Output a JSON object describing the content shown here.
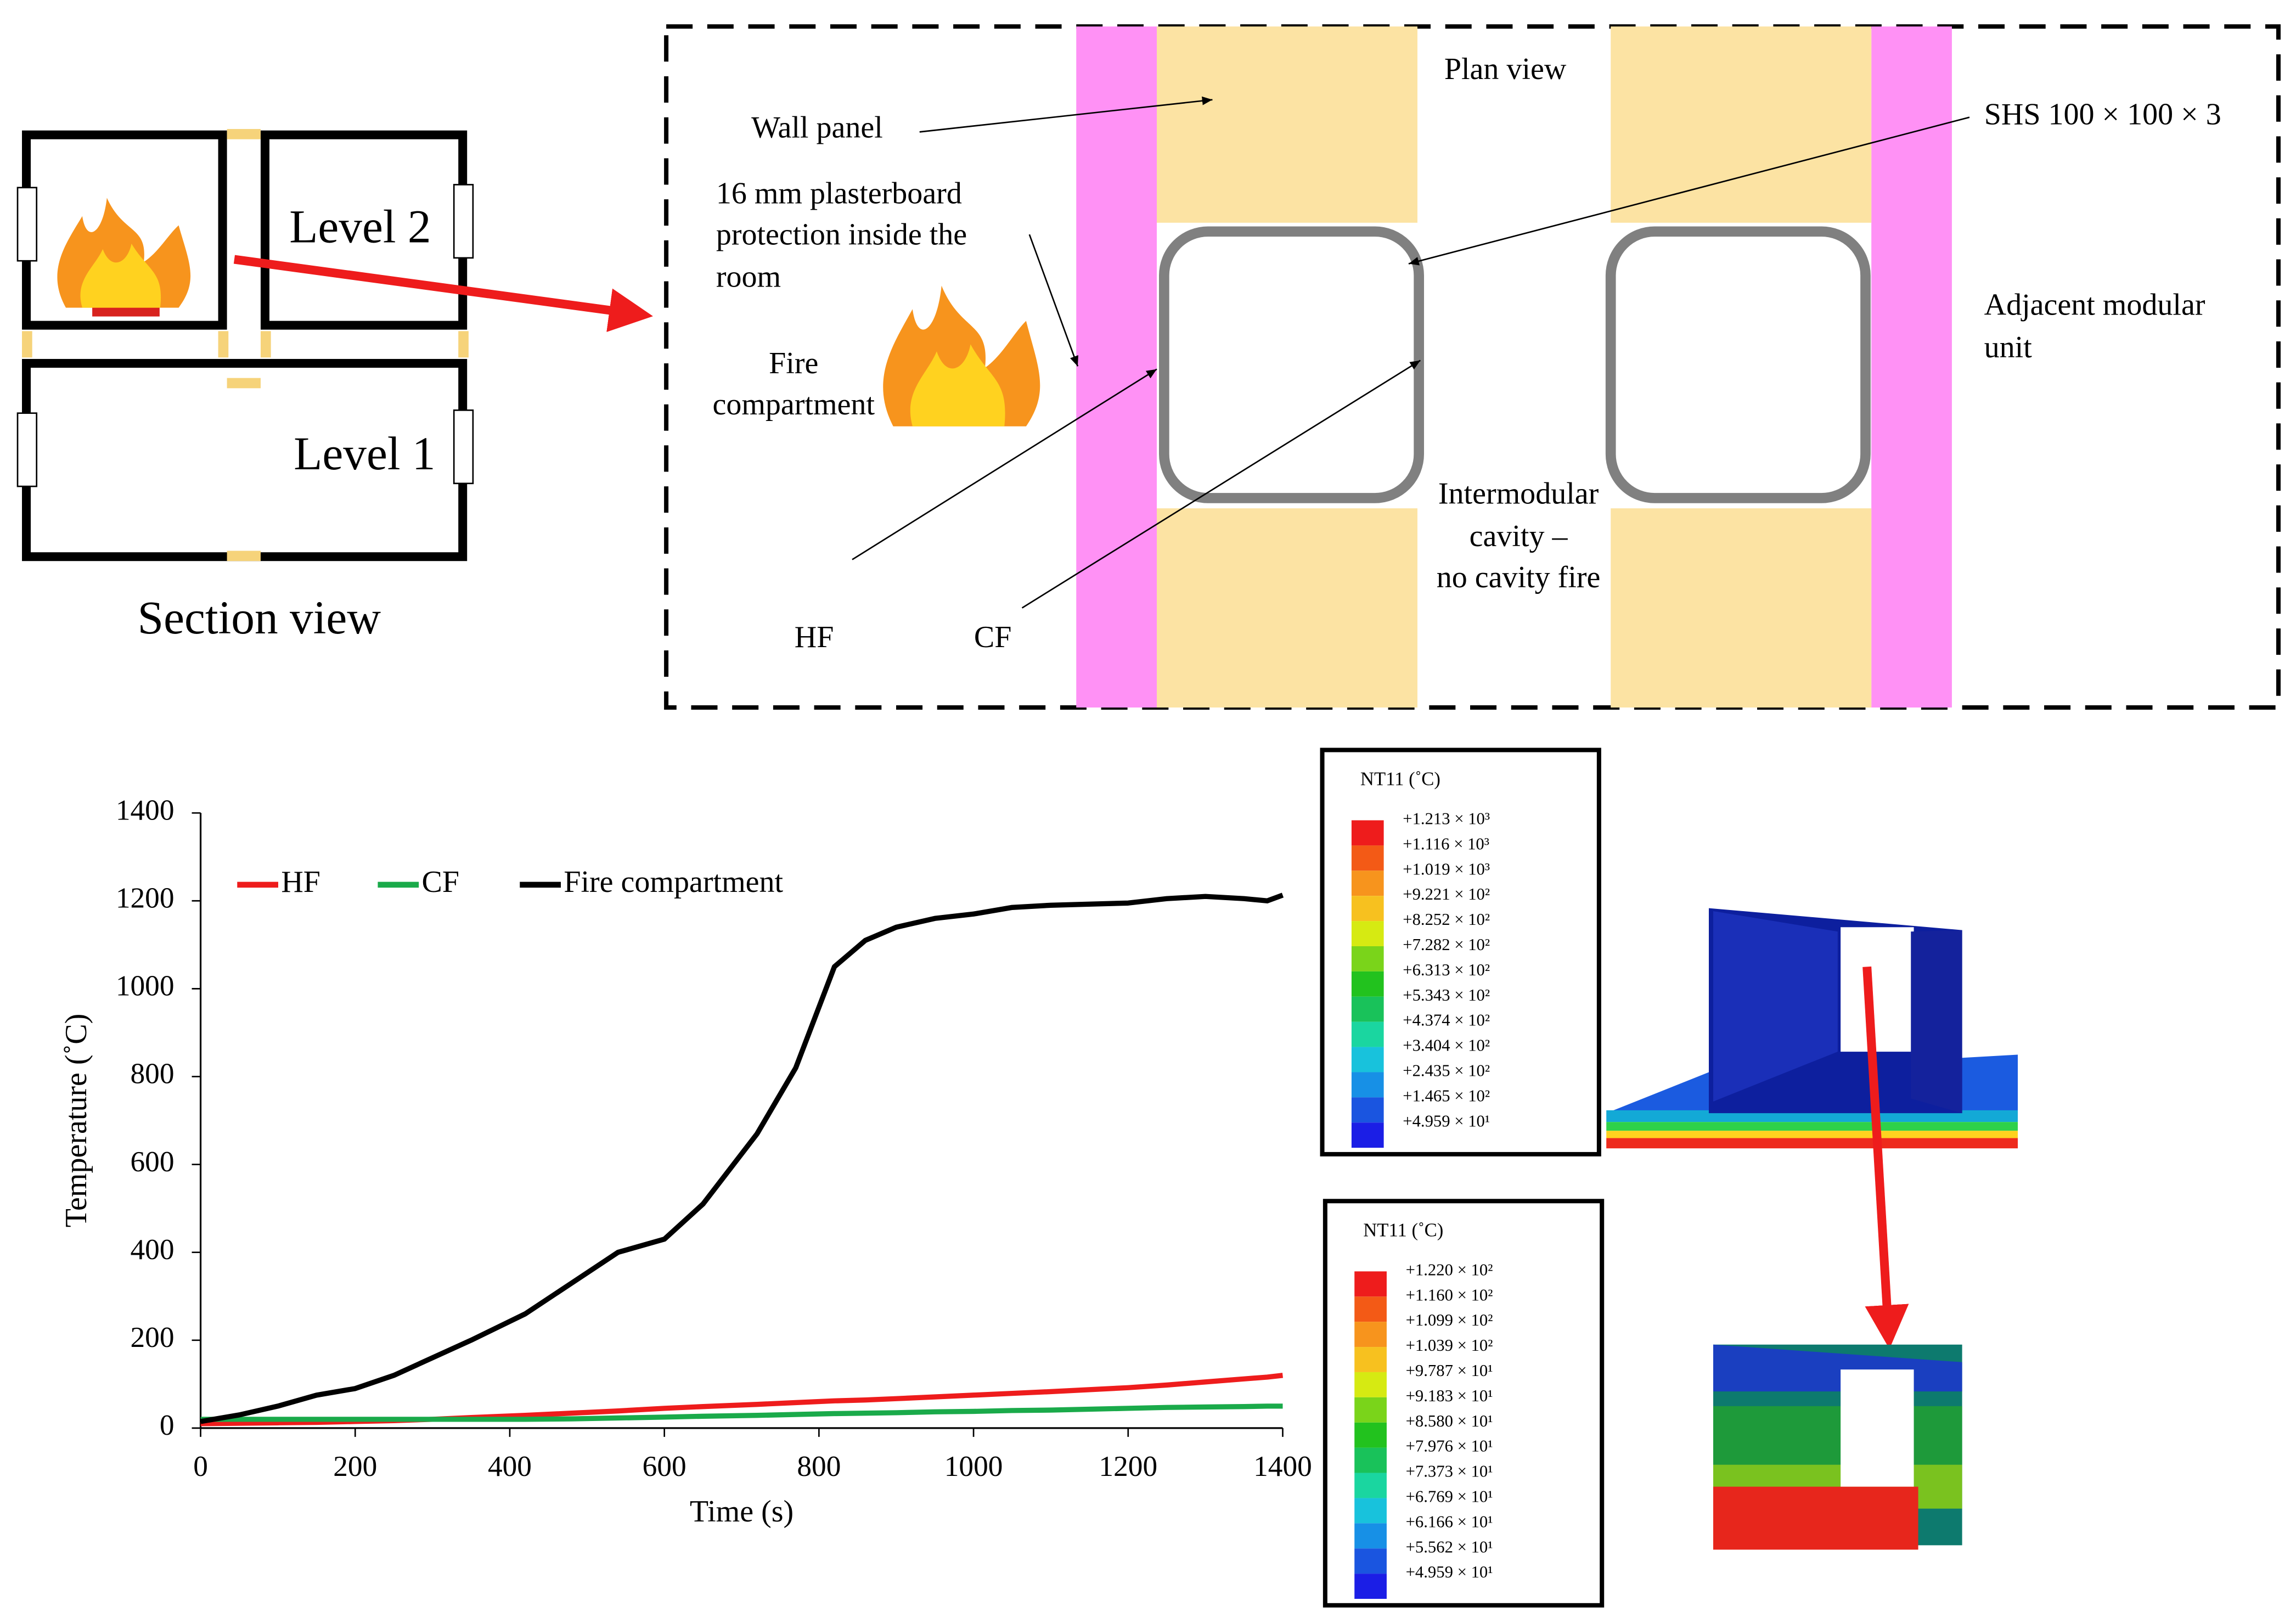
{
  "section_view": {
    "level2": "Level 2",
    "level1": "Level 1",
    "caption": "Section view"
  },
  "plan_view": {
    "title": "Plan view",
    "wall_panel": "Wall panel",
    "plasterboard": [
      "16 mm plasterboard",
      "protection inside the",
      "room"
    ],
    "fire_compartment": [
      "Fire",
      "compartment"
    ],
    "shs": "SHS 100 × 100 × 3",
    "adjacent": [
      "Adjacent modular",
      "unit"
    ],
    "cavity": [
      "Intermodular",
      "cavity –",
      "no cavity fire"
    ],
    "hf": "HF",
    "cf": "CF"
  },
  "chart_data": {
    "type": "line",
    "xlabel": "Time (s)",
    "ylabel": "Temperature (˚C)",
    "x": [
      0,
      50,
      100,
      150,
      200,
      250,
      300,
      350,
      420,
      480,
      540,
      600,
      650,
      720,
      770,
      820,
      860,
      900,
      950,
      1000,
      1050,
      1100,
      1200,
      1250,
      1300,
      1350,
      1380,
      1400
    ],
    "series": [
      {
        "name": "HF",
        "color": "#ee1c1c",
        "values": [
          10,
          11,
          12,
          13,
          15,
          17,
          20,
          24,
          29,
          34,
          39,
          45,
          49,
          54,
          58,
          62,
          64,
          67,
          71,
          75,
          79,
          83,
          92,
          98,
          105,
          112,
          116,
          120
        ]
      },
      {
        "name": "CF",
        "color": "#1aaa4a",
        "values": [
          20,
          20,
          20,
          20,
          20,
          20,
          20,
          20,
          20,
          21,
          23,
          25,
          27,
          29,
          31,
          33,
          34,
          35,
          37,
          38,
          40,
          41,
          45,
          47,
          48,
          49,
          50,
          50
        ]
      },
      {
        "name": "Fire compartment",
        "color": "#000000",
        "values": [
          15,
          30,
          50,
          75,
          90,
          120,
          160,
          200,
          260,
          330,
          400,
          430,
          510,
          670,
          820,
          1050,
          1110,
          1140,
          1160,
          1170,
          1185,
          1190,
          1195,
          1205,
          1210,
          1205,
          1200,
          1213
        ]
      }
    ],
    "xlim": [
      0,
      1400
    ],
    "ylim": [
      0,
      1400
    ],
    "xticks": [
      0,
      200,
      400,
      600,
      800,
      1000,
      1200,
      1400
    ],
    "yticks": [
      0,
      200,
      400,
      600,
      800,
      1000,
      1200,
      1400
    ]
  },
  "contour_legends": [
    {
      "title": "NT11 (˚C)",
      "labels": [
        "+1.213 × 10³",
        "+1.116 × 10³",
        "+1.019 × 10³",
        "+9.221 × 10²",
        "+8.252 × 10²",
        "+7.282 × 10²",
        "+6.313 × 10²",
        "+5.343 × 10²",
        "+4.374 × 10²",
        "+3.404 × 10²",
        "+2.435 × 10²",
        "+1.465 × 10²",
        "+4.959 × 10¹"
      ]
    },
    {
      "title": "NT11 (˚C)",
      "labels": [
        "+1.220 × 10²",
        "+1.160 × 10²",
        "+1.099 × 10²",
        "+1.039 × 10²",
        "+9.787 × 10¹",
        "+9.183 × 10¹",
        "+8.580 × 10¹",
        "+7.976 × 10¹",
        "+7.373 × 10¹",
        "+6.769 × 10¹",
        "+6.166 × 10¹",
        "+5.562 × 10¹",
        "+4.959 × 10¹"
      ]
    }
  ]
}
